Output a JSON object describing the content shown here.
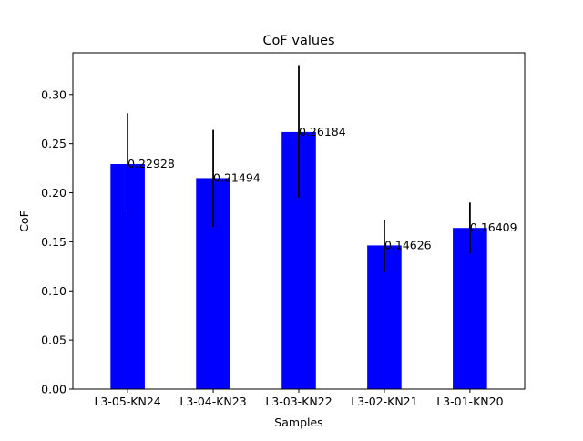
{
  "chart_data": {
    "type": "bar",
    "title": "CoF values",
    "xlabel": "Samples",
    "ylabel": "CoF",
    "categories": [
      "L3-05-KN24",
      "L3-04-KN23",
      "L3-03-KN22",
      "L3-02-KN21",
      "L3-01-KN20"
    ],
    "values": [
      0.22928,
      0.21494,
      0.26184,
      0.14626,
      0.16409
    ],
    "error_low": [
      0.177,
      0.165,
      0.195,
      0.12,
      0.138
    ],
    "error_high": [
      0.281,
      0.264,
      0.33,
      0.172,
      0.19
    ],
    "value_labels": [
      "0.22928",
      "0.21494",
      "0.26184",
      "0.14626",
      "0.16409"
    ],
    "yticks": [
      0.0,
      0.05,
      0.1,
      0.15,
      0.2,
      0.25,
      0.3
    ],
    "ytick_labels": [
      "0.00",
      "0.05",
      "0.10",
      "0.15",
      "0.20",
      "0.25",
      "0.30"
    ],
    "ylim": [
      0,
      0.3425
    ],
    "grid": false,
    "legend": "none",
    "colors": {
      "bar": "#0000ff",
      "error": "#000000",
      "axis": "#000000",
      "text": "#000000"
    }
  }
}
